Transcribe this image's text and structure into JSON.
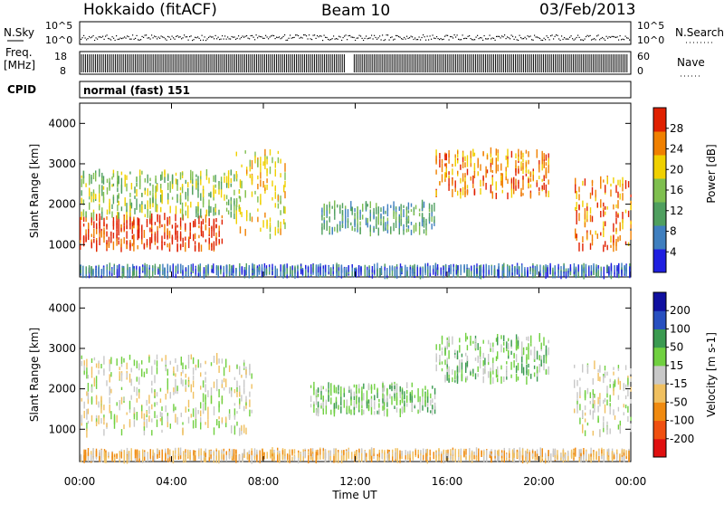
{
  "header": {
    "site": "Hokkaido (fitACF)",
    "beam": "Beam 10",
    "date": "03/Feb/2013"
  },
  "strips": {
    "nsky_label": "N.Sky",
    "nsky_ticks": [
      "10^5",
      "10^0"
    ],
    "nsearch_label": "N.Search",
    "nsearch_ticks": [
      "10^5",
      "10^0"
    ],
    "freq_label_1": "Freq.",
    "freq_label_2": "[MHz]",
    "freq_ticks": [
      "18",
      "8"
    ],
    "nave_label": "Nave",
    "nave_ticks": [
      "60",
      "0"
    ],
    "cpid_label": "CPID",
    "cpid_value": "normal (fast) 151"
  },
  "chart_data": [
    {
      "type": "heatmap",
      "name": "power-panel",
      "ylabel": "Slant Range [km]",
      "yticks": [
        "1000",
        "2000",
        "3000",
        "4000"
      ],
      "ylim": [
        200,
        4500
      ],
      "colorbar_label": "Power [dB]",
      "colorbar_ticks": [
        "4",
        "8",
        "12",
        "16",
        "20",
        "24",
        "28"
      ],
      "colorbar_colors": [
        "#1f1fe0",
        "#3f7fbf",
        "#4f9f5f",
        "#7fbf4f",
        "#f0d000",
        "#f08000",
        "#e02000"
      ],
      "regions": [
        {
          "t": [
            0.0,
            6.2
          ],
          "r": [
            900,
            1700
          ],
          "level": 6
        },
        {
          "t": [
            0.0,
            7.0
          ],
          "r": [
            1700,
            2800
          ],
          "level": 3
        },
        {
          "t": [
            6.8,
            9.0
          ],
          "r": [
            1200,
            3300
          ],
          "level": 4
        },
        {
          "t": [
            10.5,
            15.5
          ],
          "r": [
            1300,
            2000
          ],
          "level": 2
        },
        {
          "t": [
            15.5,
            20.5
          ],
          "r": [
            2200,
            3300
          ],
          "level": 5
        },
        {
          "t": [
            21.5,
            24.0
          ],
          "r": [
            900,
            2600
          ],
          "level": 5
        },
        {
          "t": [
            0.0,
            24.0
          ],
          "r": [
            250,
            450
          ],
          "level": 1
        }
      ]
    },
    {
      "type": "heatmap",
      "name": "velocity-panel",
      "ylabel": "Slant Range [km]",
      "yticks": [
        "1000",
        "2000",
        "3000",
        "4000"
      ],
      "ylim": [
        200,
        4500
      ],
      "xlabel": "Time UT",
      "xticks": [
        "00:00",
        "04:00",
        "08:00",
        "12:00",
        "16:00",
        "20:00",
        "00:00"
      ],
      "xlim": [
        0,
        24
      ],
      "colorbar_label": "Velocity [m s-1]",
      "colorbar_ticks": [
        "-200",
        "-100",
        "-50",
        "-15",
        "15",
        "50",
        "100",
        "200"
      ],
      "colorbar_colors": [
        "#e01010",
        "#f05010",
        "#f08a10",
        "#f0c060",
        "#c8c8c8",
        "#70d040",
        "#3a9a50",
        "#2850c0",
        "#1010a0"
      ],
      "regions": [
        {
          "t": [
            0.0,
            7.5
          ],
          "r": [
            900,
            2800
          ],
          "level": 4
        },
        {
          "t": [
            10.0,
            15.5
          ],
          "r": [
            1400,
            2100
          ],
          "level": 5
        },
        {
          "t": [
            15.5,
            20.5
          ],
          "r": [
            2200,
            3300
          ],
          "level": 5
        },
        {
          "t": [
            21.5,
            24.0
          ],
          "r": [
            900,
            2600
          ],
          "level": 4
        },
        {
          "t": [
            0.0,
            24.0
          ],
          "r": [
            250,
            450
          ],
          "level": 3
        }
      ]
    }
  ]
}
